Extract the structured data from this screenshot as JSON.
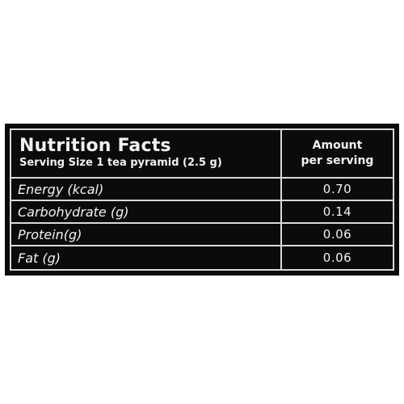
{
  "header": {
    "title": "Nutrition Facts",
    "serving_size": "Serving Size 1 tea pyramid (2.5 g)",
    "amount_line1": "Amount",
    "amount_line2": "per serving"
  },
  "rows": [
    {
      "label": "Energy (kcal)",
      "value": "0.70"
    },
    {
      "label": "Carbohydrate (g)",
      "value": "0.14"
    },
    {
      "label": "Protein(g)",
      "value": "0.06"
    },
    {
      "label": "Fat (g)",
      "value": "0.06"
    }
  ],
  "colors": {
    "panel_background": "#0b0b0b",
    "text": "#f2f2f2",
    "rule": "#d9d9d9"
  }
}
